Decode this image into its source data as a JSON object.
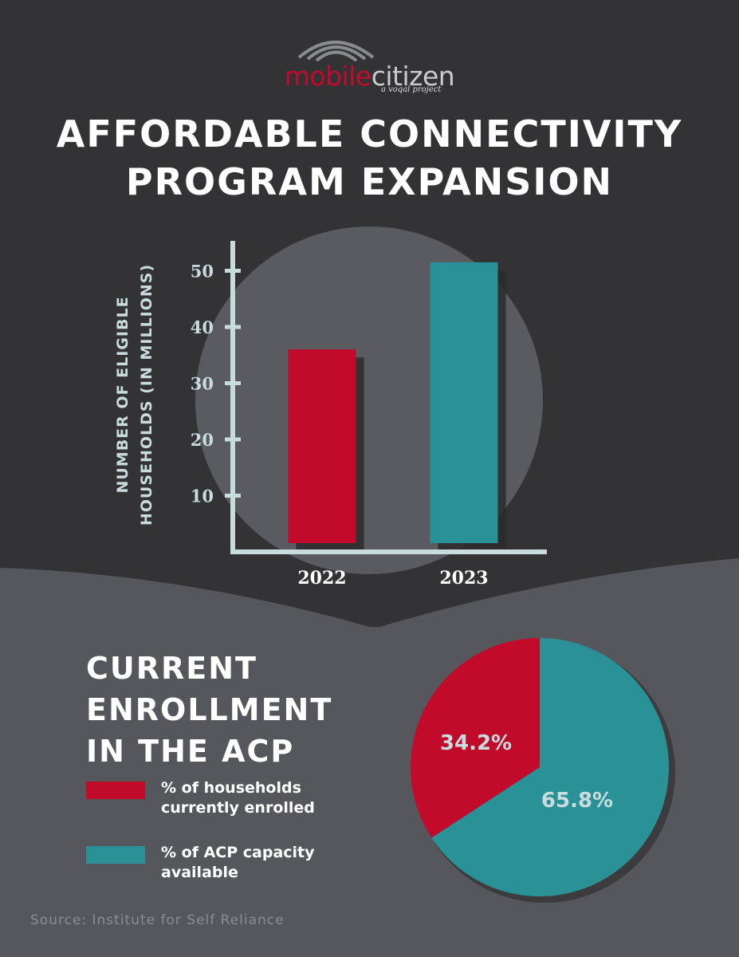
{
  "brand": {
    "name_part1": "mobile",
    "name_part2": "citizen",
    "tagline": "a voqal project"
  },
  "title": "AFFORDABLE CONNECTIVITY PROGRAM EXPANSION",
  "colors": {
    "background_dark": "#333335",
    "background_mid": "#56575c",
    "circle": "#5a5b60",
    "red": "#c20b2b",
    "teal": "#2a9197",
    "axis": "#c8dcdd",
    "pie_label": "#c8dcdd"
  },
  "chart_data": [
    {
      "type": "bar",
      "title": "AFFORDABLE CONNECTIVITY PROGRAM EXPANSION",
      "ylabel_line1": "NUMBER OF ELIGIBLE",
      "ylabel_line2": "HOUSEHOLDS (IN MILLIONS)",
      "xlabel": "",
      "categories": [
        "2022",
        "2023"
      ],
      "values": [
        36,
        51.5
      ],
      "bar_colors": [
        "#c20b2b",
        "#2a9197"
      ],
      "yticks": [
        10,
        20,
        30,
        40,
        50
      ],
      "ylim": [
        0,
        56
      ],
      "grid": false
    },
    {
      "type": "pie",
      "title": "CURRENT ENROLLMENT IN THE ACP",
      "slices": [
        {
          "label": "% of households currently enrolled",
          "value": 34.2,
          "display": "34.2%",
          "color": "#c20b2b"
        },
        {
          "label": "% of ACP capacity available",
          "value": 65.8,
          "display": "65.8%",
          "color": "#2a9197"
        }
      ],
      "legend_position": "left"
    }
  ],
  "source": "Source: Institute for Self Reliance"
}
